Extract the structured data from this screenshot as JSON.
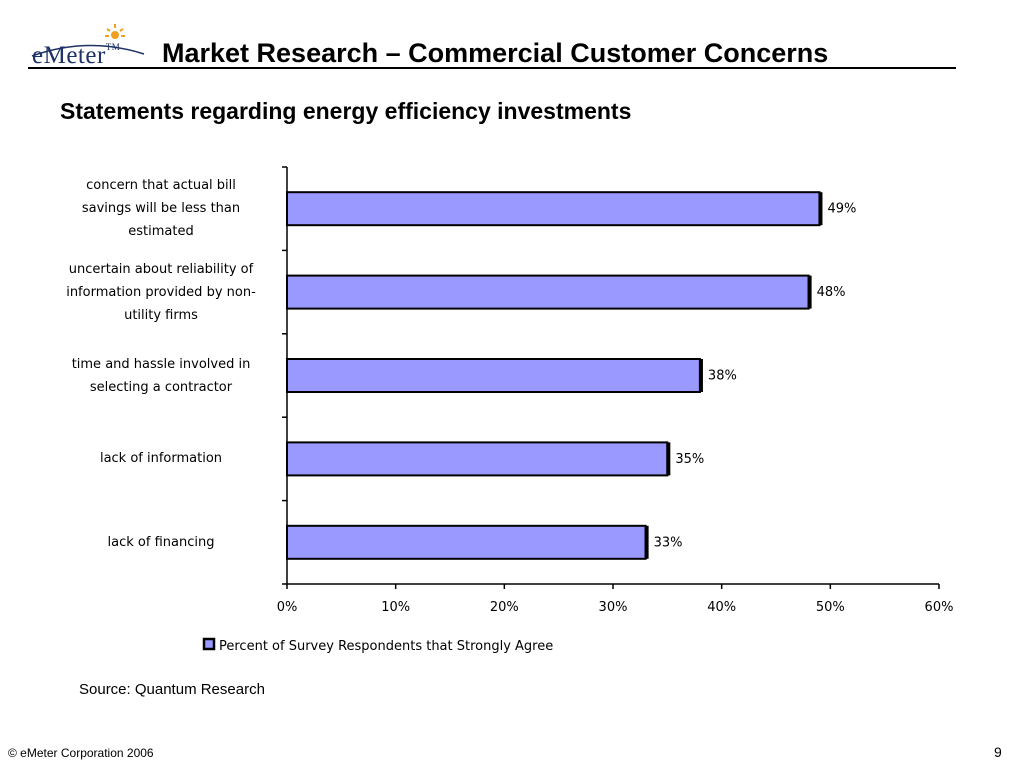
{
  "logo": {
    "name": "eMeter",
    "tm": "TM"
  },
  "header": {
    "title": "Market Research – Commercial Customer Concerns"
  },
  "subtitle": "Statements regarding energy efficiency investments",
  "chart_data": {
    "type": "bar",
    "orientation": "horizontal",
    "categories": [
      "concern that actual bill savings will be less than estimated",
      "uncertain about reliability of information provided by non-utility firms",
      "time and hassle involved in selecting a contractor",
      "lack of information",
      "lack of financing"
    ],
    "category_label_lines": [
      [
        "concern that actual bill",
        "savings will be less than",
        "estimated"
      ],
      [
        "uncertain about reliability of",
        "information provided by non-",
        "utility firms"
      ],
      [
        "time and hassle involved in",
        "selecting a contractor"
      ],
      [
        "lack of information"
      ],
      [
        "lack of financing"
      ]
    ],
    "series": [
      {
        "name": "Percent of Survey Respondents that Strongly Agree",
        "values": [
          49,
          48,
          38,
          35,
          33
        ]
      }
    ],
    "data_labels": [
      "49%",
      "48%",
      "38%",
      "35%",
      "33%"
    ],
    "xlim": [
      0,
      60
    ],
    "x_ticks": [
      0,
      10,
      20,
      30,
      40,
      50,
      60
    ],
    "x_tick_labels": [
      "0%",
      "10%",
      "20%",
      "30%",
      "40%",
      "50%",
      "60%"
    ],
    "grid": false,
    "legend_position": "bottom",
    "bar_color": "#9999ff",
    "edge_color": "#000000"
  },
  "source": "Source: Quantum Research",
  "footer": {
    "copyright": "© eMeter Corporation 2006",
    "page_number": "9"
  }
}
